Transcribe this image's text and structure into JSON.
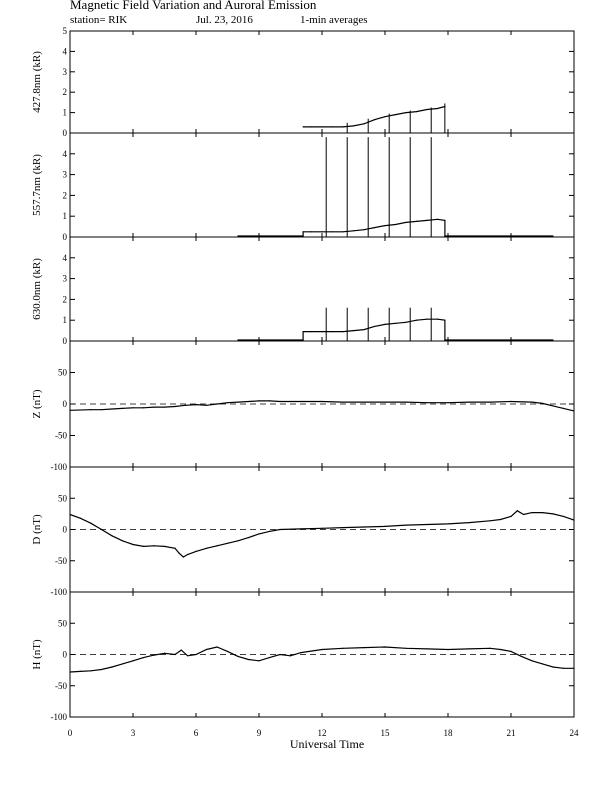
{
  "header": {
    "title": "Magnetic Field Variation and Auroral Emission",
    "station": "station= RIK",
    "date": "Jul. 23, 2016",
    "averaging": "1-min averages"
  },
  "chart_data": [
    {
      "type": "line",
      "ylabel": "427.8nm (kR)",
      "ylim": [
        0,
        5
      ],
      "yticks": [
        "0",
        "1",
        "2",
        "3",
        "4",
        "5"
      ],
      "series": [
        {
          "x": [
            11.1,
            11.5,
            12,
            12.5,
            13,
            13.5,
            14,
            14.5,
            15,
            15.5,
            16,
            16.5,
            17,
            17.5,
            17.85
          ],
          "values": [
            0.3,
            0.3,
            0.3,
            0.3,
            0.3,
            0.35,
            0.45,
            0.65,
            0.8,
            0.9,
            1.0,
            1.05,
            1.15,
            1.2,
            1.3
          ]
        }
      ],
      "spikes": [
        {
          "x": 13.2,
          "top": 0.5
        },
        {
          "x": 14.2,
          "top": 0.7
        },
        {
          "x": 15.2,
          "top": 0.95
        },
        {
          "x": 16.2,
          "top": 1.1
        },
        {
          "x": 17.2,
          "top": 1.25
        },
        {
          "x": 17.85,
          "top": 1.45
        }
      ]
    },
    {
      "type": "line",
      "ylabel": "557.7nm (kR)",
      "ylim": [
        0,
        5
      ],
      "yticks": [
        "0",
        "1",
        "2",
        "3",
        "4"
      ],
      "series": [
        {
          "x": [
            8,
            11.1,
            11.1,
            11.5,
            12,
            12.5,
            13,
            13.5,
            14,
            14.5,
            15,
            15.5,
            16,
            16.5,
            17,
            17.5,
            17.85,
            17.85,
            23
          ],
          "values": [
            0.05,
            0.05,
            0.25,
            0.25,
            0.25,
            0.25,
            0.25,
            0.3,
            0.35,
            0.45,
            0.55,
            0.6,
            0.7,
            0.75,
            0.8,
            0.85,
            0.8,
            0.05,
            0.05
          ]
        }
      ],
      "spikes": [
        {
          "x": 12.2,
          "top": 4.8
        },
        {
          "x": 13.2,
          "top": 4.8
        },
        {
          "x": 14.2,
          "top": 4.8
        },
        {
          "x": 15.2,
          "top": 4.8
        },
        {
          "x": 16.2,
          "top": 4.8
        },
        {
          "x": 17.2,
          "top": 4.8
        }
      ]
    },
    {
      "type": "line",
      "ylabel": "630.0nm (kR)",
      "ylim": [
        0,
        5
      ],
      "yticks": [
        "0",
        "1",
        "2",
        "3",
        "4"
      ],
      "series": [
        {
          "x": [
            8,
            11.1,
            11.1,
            11.5,
            12,
            12.5,
            13,
            13.5,
            14,
            14.5,
            15,
            15.5,
            16,
            16.5,
            17,
            17.5,
            17.85,
            17.85,
            23
          ],
          "values": [
            0.05,
            0.05,
            0.45,
            0.45,
            0.45,
            0.45,
            0.45,
            0.5,
            0.55,
            0.7,
            0.8,
            0.85,
            0.9,
            1.0,
            1.05,
            1.05,
            1.0,
            0.05,
            0.05
          ]
        }
      ],
      "spikes": [
        {
          "x": 12.2,
          "top": 1.6
        },
        {
          "x": 13.2,
          "top": 1.6
        },
        {
          "x": 14.2,
          "top": 1.6
        },
        {
          "x": 15.2,
          "top": 1.6
        },
        {
          "x": 16.2,
          "top": 1.6
        },
        {
          "x": 17.2,
          "top": 1.6
        }
      ]
    },
    {
      "type": "line",
      "ylabel": "Z (nT)",
      "ylim": [
        -100,
        100
      ],
      "yticks": [
        "-100",
        "-50",
        "0",
        "50"
      ],
      "zero_line": "dashed",
      "series": [
        {
          "x": [
            0,
            1,
            1.5,
            2,
            2.5,
            3,
            3.5,
            4,
            4.5,
            5,
            5.5,
            6,
            6.5,
            7,
            7.5,
            8,
            8.5,
            9,
            9.5,
            10,
            11,
            12,
            13,
            14,
            15,
            16,
            17,
            18,
            19,
            20,
            21,
            22,
            22.5,
            23,
            23.5,
            24
          ],
          "values": [
            -10,
            -9,
            -9,
            -8,
            -7,
            -6,
            -6,
            -5,
            -5,
            -4,
            -2,
            -1,
            -2,
            0,
            2,
            3,
            4,
            5,
            5,
            4,
            4,
            4,
            3,
            3,
            3,
            3,
            2,
            2,
            3,
            3,
            4,
            3,
            1,
            -3,
            -7,
            -11
          ]
        }
      ]
    },
    {
      "type": "line",
      "ylabel": "D (nT)",
      "ylim": [
        -100,
        100
      ],
      "yticks": [
        "-100",
        "-50",
        "0",
        "50"
      ],
      "zero_line": "dashed",
      "series": [
        {
          "x": [
            0,
            0.5,
            1,
            1.5,
            2,
            2.5,
            3,
            3.5,
            4,
            4.5,
            5,
            5.2,
            5.4,
            5.6,
            6,
            6.5,
            7,
            7.5,
            8,
            8.5,
            9,
            9.5,
            10,
            11,
            12,
            13,
            14,
            15,
            16,
            17,
            18,
            19,
            20,
            20.5,
            21,
            21.3,
            21.6,
            22,
            22.5,
            23,
            23.5,
            24
          ],
          "values": [
            24,
            18,
            10,
            0,
            -10,
            -18,
            -24,
            -27,
            -26,
            -27,
            -30,
            -38,
            -44,
            -40,
            -35,
            -30,
            -26,
            -22,
            -18,
            -13,
            -7,
            -3,
            0,
            1,
            2,
            3,
            4,
            5,
            7,
            8,
            9,
            11,
            14,
            16,
            21,
            30,
            24,
            27,
            27,
            25,
            21,
            15
          ]
        }
      ]
    },
    {
      "type": "line",
      "ylabel": "H (nT)",
      "ylim": [
        -100,
        100
      ],
      "yticks": [
        "-100",
        "-50",
        "0",
        "50"
      ],
      "zero_line": "dashed",
      "series": [
        {
          "x": [
            0,
            0.5,
            1,
            1.5,
            2,
            2.5,
            3,
            3.5,
            4,
            4.5,
            5,
            5.3,
            5.6,
            6,
            6.5,
            7,
            7.5,
            8,
            8.5,
            9,
            9.5,
            10,
            10.5,
            11,
            12,
            13,
            14,
            15,
            16,
            17,
            18,
            19,
            20,
            20.5,
            21,
            21.5,
            22,
            22.5,
            23,
            23.5,
            24
          ],
          "values": [
            -28,
            -27,
            -26,
            -24,
            -20,
            -15,
            -10,
            -5,
            -1,
            2,
            0,
            7,
            -2,
            0,
            8,
            12,
            5,
            -3,
            -8,
            -10,
            -5,
            0,
            -2,
            3,
            8,
            10,
            11,
            12,
            10,
            9,
            8,
            9,
            10,
            8,
            5,
            -3,
            -10,
            -15,
            -20,
            -22,
            -22
          ]
        }
      ]
    }
  ],
  "x_axis": {
    "label": "Universal Time",
    "range": [
      0,
      24
    ],
    "ticks": [
      "0",
      "3",
      "6",
      "9",
      "12",
      "15",
      "18",
      "21",
      "24"
    ]
  }
}
